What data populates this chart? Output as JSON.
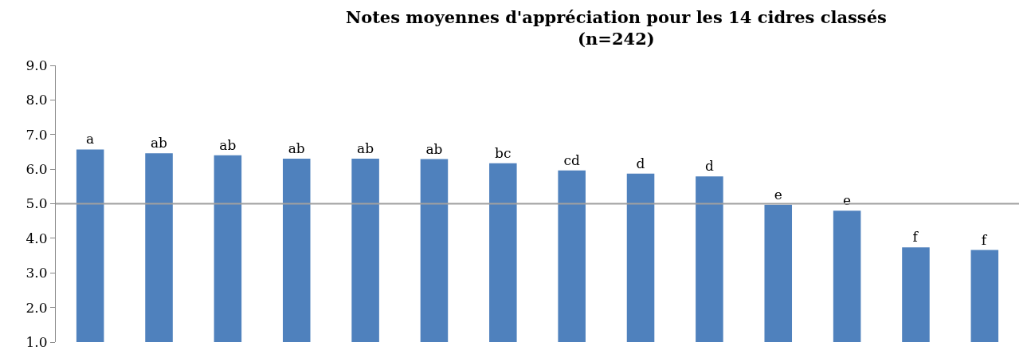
{
  "chart_data": {
    "type": "bar",
    "title": "Notes moyennes d'appréciation pour les 14 cidres classés\n(n=242)",
    "categories": [
      null,
      null,
      null,
      null,
      null,
      null,
      null,
      null,
      null,
      null,
      null,
      null,
      null,
      null
    ],
    "values": [
      6.57,
      6.46,
      6.4,
      6.3,
      6.3,
      6.29,
      6.17,
      5.96,
      5.87,
      5.79,
      4.97,
      4.8,
      3.74,
      3.66
    ],
    "value_labels": [
      "a",
      "ab",
      "ab",
      "ab",
      "ab",
      "ab",
      "bc",
      "cd",
      "d",
      "d",
      "e",
      "e",
      "f",
      "f"
    ],
    "color": "#4f81bd",
    "ylim": [
      1,
      9
    ],
    "yticks": [
      {
        "value": 1,
        "label": "1.0"
      },
      {
        "value": 2,
        "label": "2.0"
      },
      {
        "value": 3,
        "label": "3.0"
      },
      {
        "value": 4,
        "label": "4.0"
      },
      {
        "value": 5,
        "label": "5.0"
      },
      {
        "value": 6,
        "label": "6.0"
      },
      {
        "value": 7,
        "label": "7.0"
      },
      {
        "value": 8,
        "label": "8.0"
      },
      {
        "value": 9,
        "label": "9.0"
      }
    ],
    "ref_lines": [
      {
        "axis": "y",
        "value": 5,
        "color": "#a0a0a0"
      }
    ],
    "grid": false
  }
}
